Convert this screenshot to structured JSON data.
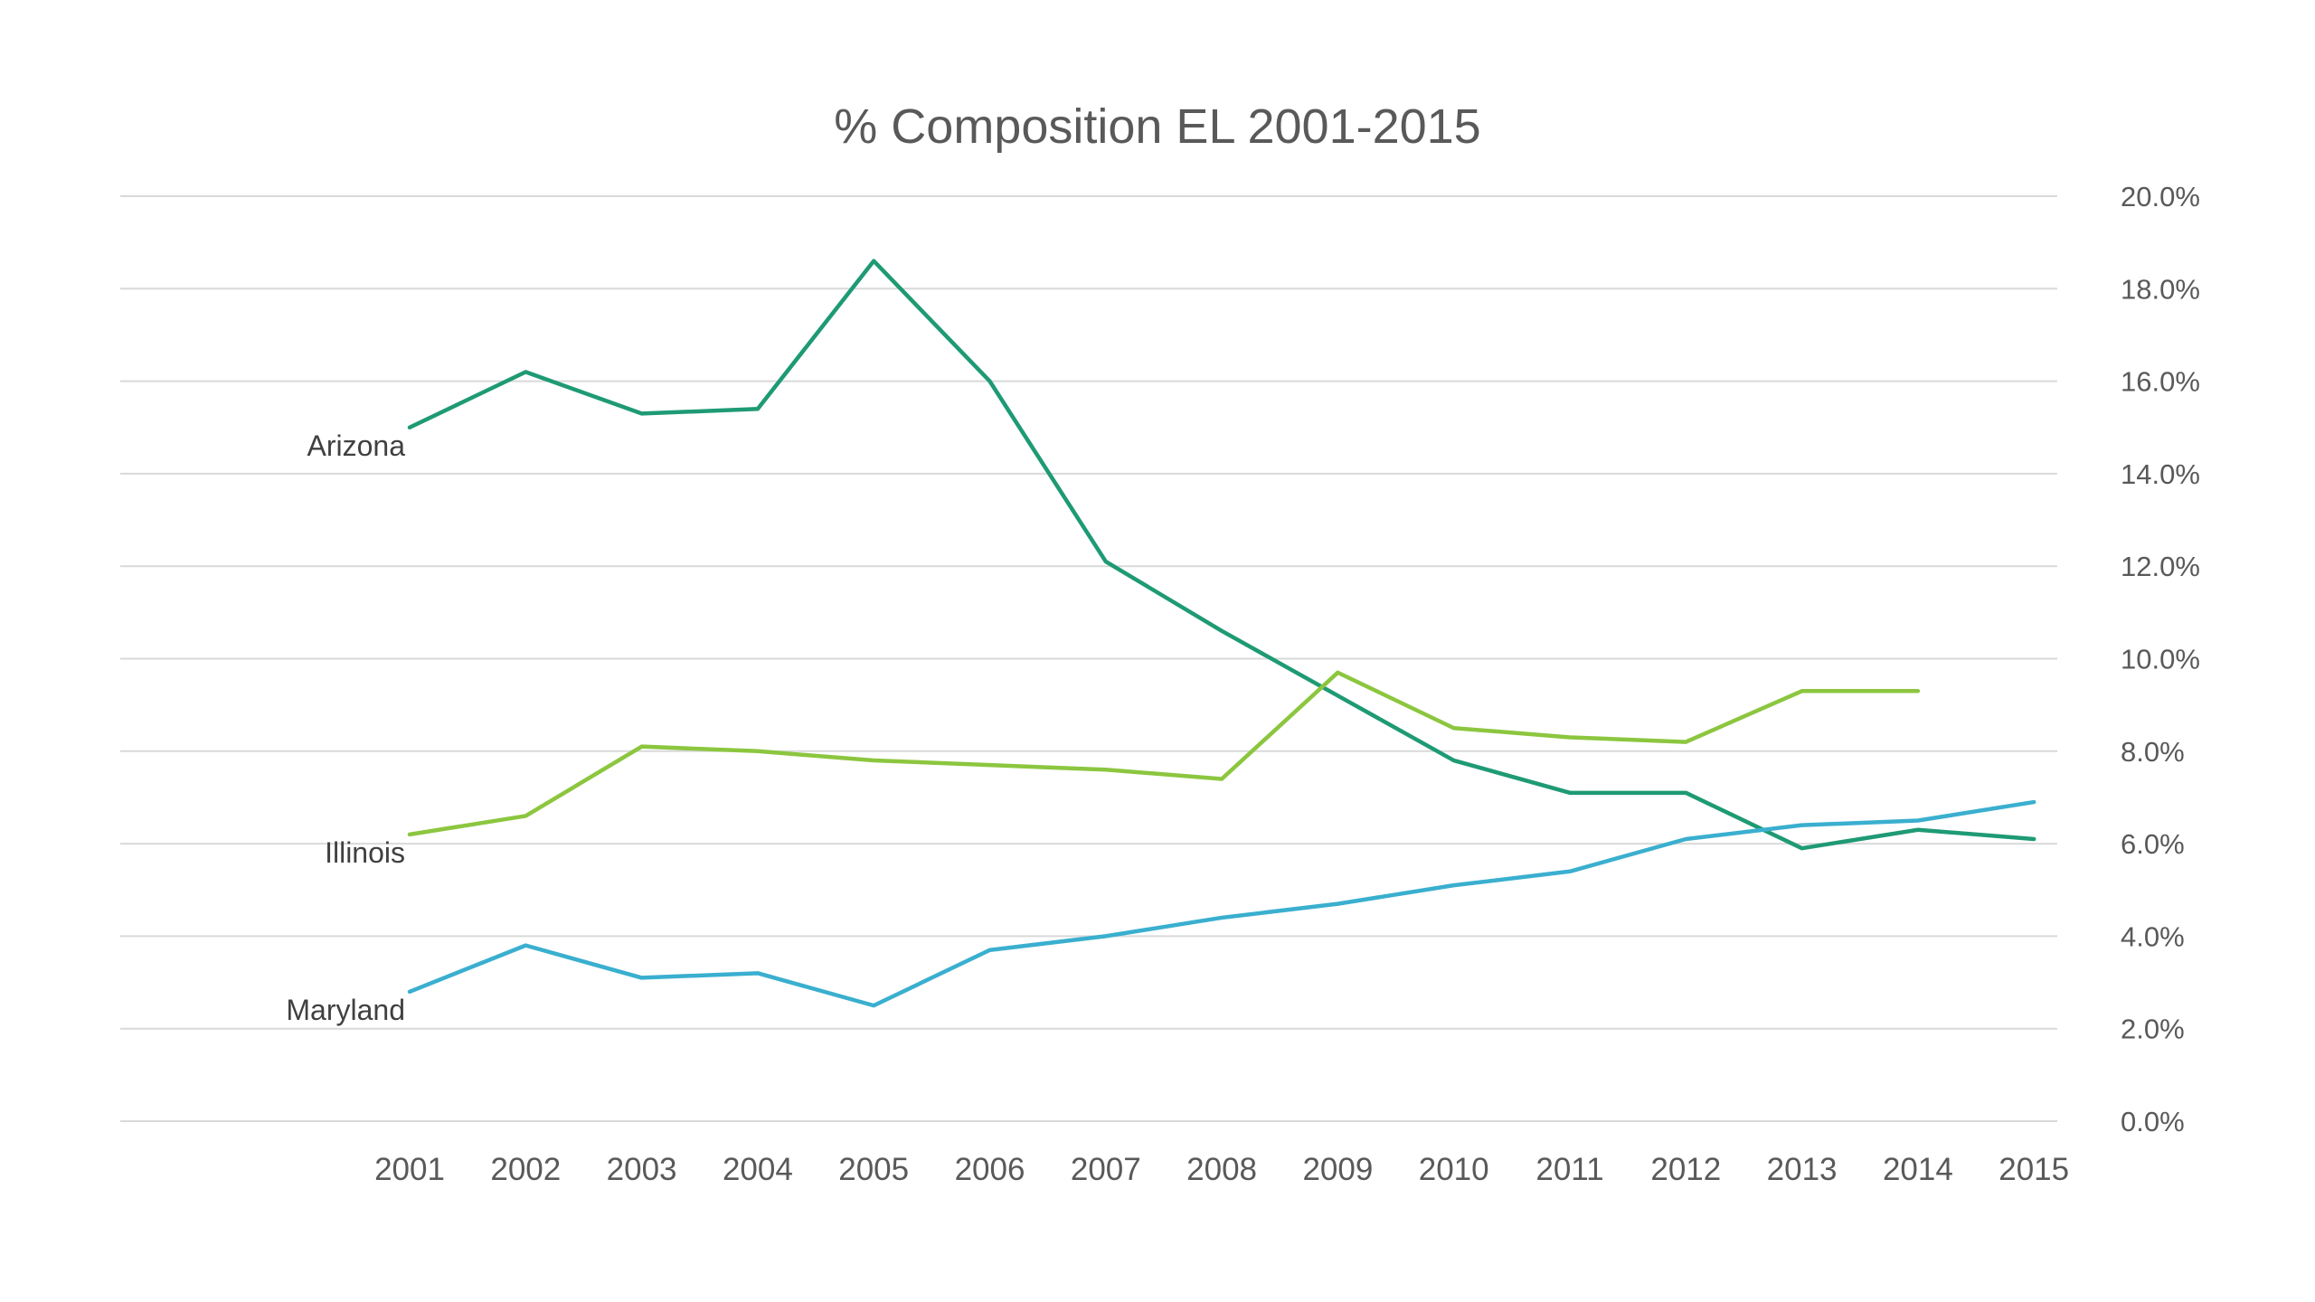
{
  "chart_data": {
    "type": "line",
    "title": "% Composition EL 2001-2015",
    "xlabel": "",
    "ylabel": "",
    "categories": [
      "2001",
      "2002",
      "2003",
      "2004",
      "2005",
      "2006",
      "2007",
      "2008",
      "2009",
      "2010",
      "2011",
      "2012",
      "2013",
      "2014",
      "2015"
    ],
    "y_axis": {
      "position": "right",
      "min": 0,
      "max": 20,
      "step": 2,
      "tick_labels": [
        "0.0%",
        "2.0%",
        "4.0%",
        "6.0%",
        "8.0%",
        "10.0%",
        "12.0%",
        "14.0%",
        "16.0%",
        "18.0%",
        "20.0%"
      ]
    },
    "grid": true,
    "legend": "inline labels at left of lines",
    "series": [
      {
        "name": "Arizona",
        "color": "#1e9a74",
        "values": [
          15.0,
          16.2,
          15.3,
          15.4,
          18.6,
          16.0,
          12.1,
          10.6,
          9.2,
          7.8,
          7.1,
          7.1,
          5.9,
          6.3,
          6.1
        ]
      },
      {
        "name": "Illinois",
        "color": "#8cc63f",
        "values": [
          6.2,
          6.6,
          8.1,
          8.0,
          7.8,
          7.7,
          7.6,
          7.4,
          9.7,
          8.5,
          8.3,
          8.2,
          9.3,
          9.3,
          null
        ]
      },
      {
        "name": "Maryland",
        "color": "#3aafcf",
        "values": [
          2.8,
          3.8,
          3.1,
          3.2,
          2.5,
          3.7,
          4.0,
          4.4,
          4.7,
          5.1,
          5.4,
          6.1,
          6.4,
          6.5,
          6.9
        ]
      }
    ]
  }
}
